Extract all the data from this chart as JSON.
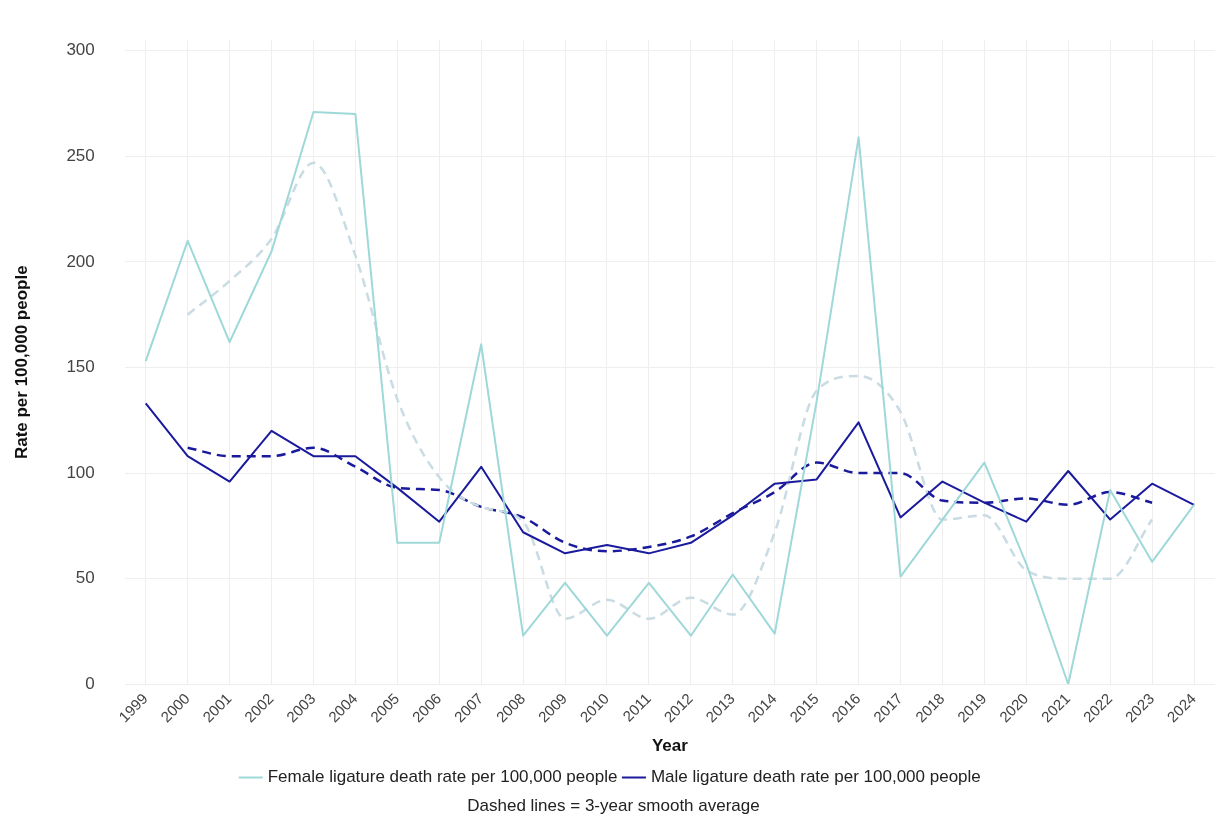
{
  "chart_data": {
    "type": "line",
    "xlabel": "Year",
    "ylabel": "Rate per 100,000 people",
    "categories": [
      "1999",
      "2000",
      "2001",
      "2002",
      "2003",
      "2004",
      "2005",
      "2006",
      "2007",
      "2008",
      "2009",
      "2010",
      "2011",
      "2012",
      "2013",
      "2014",
      "2015",
      "2016",
      "2017",
      "2018",
      "2019",
      "2020",
      "2021",
      "2022",
      "2023",
      "2024"
    ],
    "series": [
      {
        "name": "Female ligature death rate per 100,000 people",
        "color": "#9fd8d8",
        "line_style": "solid",
        "values": [
          153,
          210,
          162,
          205,
          271,
          270,
          67,
          67,
          161,
          23,
          48,
          23,
          48,
          23,
          52,
          24,
          134,
          259,
          51,
          78,
          105,
          57,
          0,
          92,
          58,
          85
        ]
      },
      {
        "name": "Male ligature death rate per 100,000 people",
        "color": "#1a1a9c",
        "line_style": "solid",
        "values": [
          133,
          108,
          96,
          120,
          108,
          108,
          93,
          77,
          103,
          72,
          62,
          66,
          62,
          67,
          80,
          95,
          97,
          124,
          79,
          96,
          86,
          77,
          101,
          78,
          95,
          85
        ]
      },
      {
        "color": "#c9dbe3",
        "line_style": "dashed",
        "values": [
          null,
          175,
          191,
          211,
          247,
          203,
          135,
          98,
          84,
          77,
          31,
          40,
          31,
          41,
          33,
          72,
          139,
          146,
          129,
          78,
          80,
          54,
          50,
          50,
          78,
          null
        ]
      },
      {
        "color": "#1a1a9c",
        "line_style": "dashed",
        "values": [
          null,
          112,
          108,
          108,
          112,
          103,
          93,
          92,
          84,
          79,
          67,
          63,
          65,
          70,
          81,
          91,
          105,
          100,
          100,
          87,
          86,
          88,
          85,
          91,
          86,
          null
        ]
      }
    ],
    "ylim": [
      0,
      305
    ],
    "yticks": [
      0,
      50,
      100,
      150,
      200,
      250,
      300
    ],
    "grid": true,
    "legend": "bottom",
    "marker": "none",
    "annotations": [
      "Dashed lines = 3-year smooth average"
    ]
  }
}
